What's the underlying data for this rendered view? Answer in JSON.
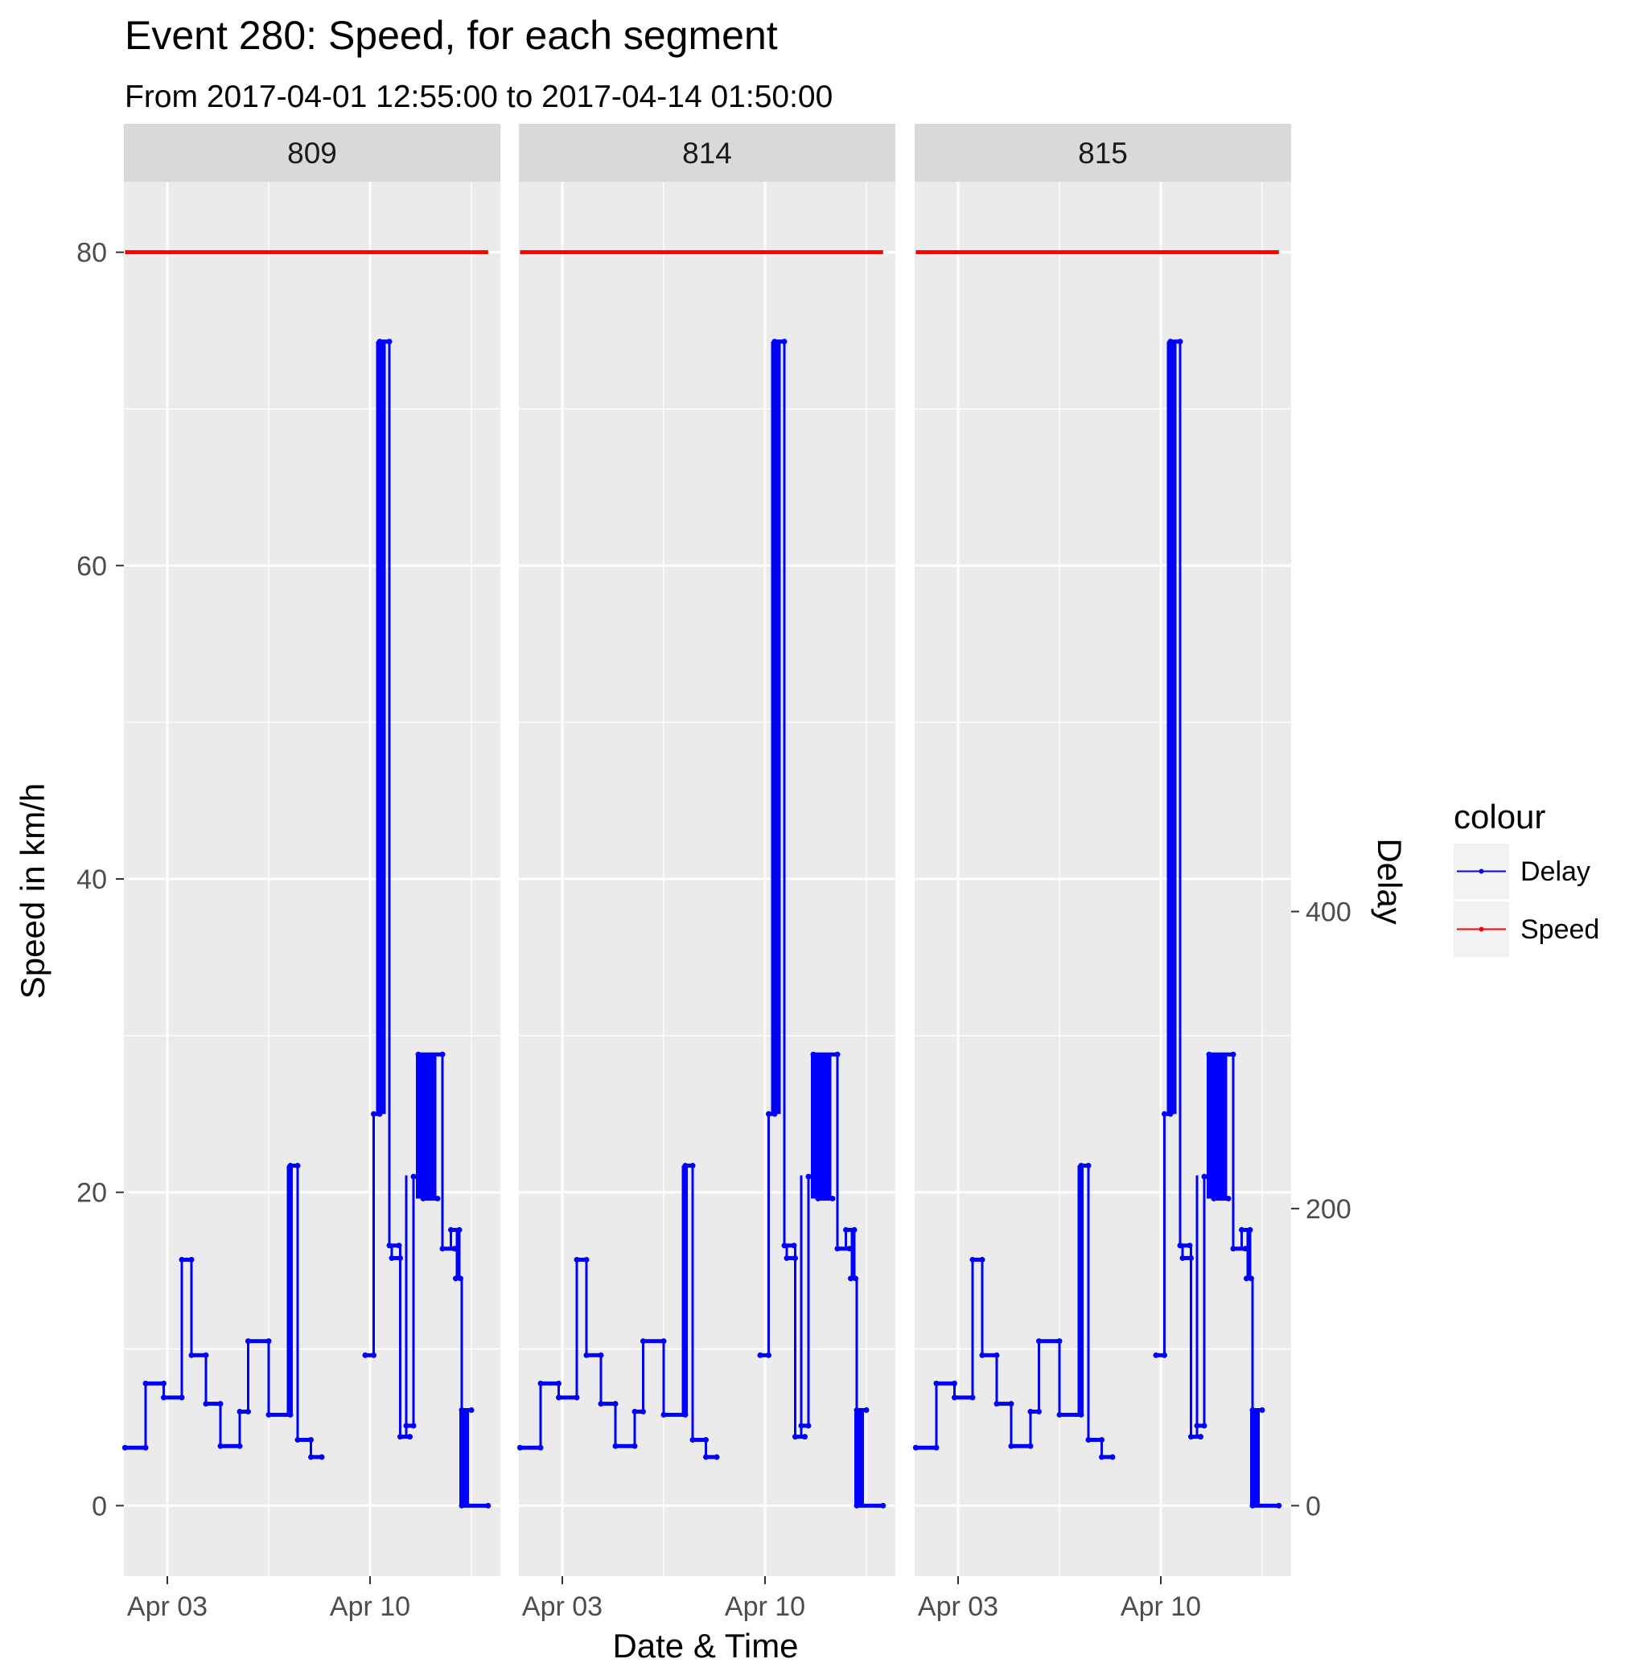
{
  "chart_data": {
    "type": "line",
    "title": "Event 280: Speed, for each segment",
    "subtitle": "From 2017-04-01 12:55:00 to 2017-04-14 01:50:00",
    "xlabel": "Date & Time",
    "ylabel": "Speed in km/h",
    "y2label": "Delay",
    "panels": [
      "809",
      "814",
      "815"
    ],
    "x_ticks": [
      "Apr 03",
      "Apr 10"
    ],
    "xlim": [
      "2017-04-01T12:00",
      "2017-04-14T12:00"
    ],
    "ylim": [
      -4.5,
      84.5
    ],
    "y_ticks": [
      0,
      20,
      40,
      60,
      80
    ],
    "y2_ticks": [
      0,
      200,
      400
    ],
    "y2_scale": 0.0948,
    "grid": true,
    "legend": {
      "title": "colour",
      "position": "right",
      "entries": [
        {
          "name": "Delay",
          "color": "#0000ff"
        },
        {
          "name": "Speed",
          "color": "#ff0000"
        }
      ]
    },
    "series": [
      {
        "name": "Speed",
        "color": "#ff0000",
        "points": [
          [
            "2017-04-01T12:55",
            80
          ],
          [
            "2017-04-14T01:50",
            80
          ]
        ]
      },
      {
        "name": "Delay",
        "color": "#0000ff",
        "segments": [
          [
            [
              "2017-04-01T12:55",
              3.7
            ],
            [
              "2017-04-02T06:00",
              3.7
            ]
          ],
          [
            [
              "2017-04-02T06:00",
              7.8
            ],
            [
              "2017-04-02T21:00",
              7.8
            ]
          ],
          [
            [
              "2017-04-02T21:00",
              6.9
            ],
            [
              "2017-04-03T12:00",
              6.9
            ]
          ],
          [
            [
              "2017-04-03T12:00",
              15.7
            ],
            [
              "2017-04-03T20:00",
              15.7
            ]
          ],
          [
            [
              "2017-04-03T20:00",
              9.6
            ],
            [
              "2017-04-04T08:00",
              9.6
            ]
          ],
          [
            [
              "2017-04-04T08:00",
              6.5
            ],
            [
              "2017-04-04T20:00",
              6.5
            ]
          ],
          [
            [
              "2017-04-04T20:00",
              3.8
            ],
            [
              "2017-04-05T12:00",
              3.8
            ]
          ],
          [
            [
              "2017-04-05T12:00",
              6.0
            ],
            [
              "2017-04-05T19:00",
              6.0
            ]
          ],
          [
            [
              "2017-04-05T19:00",
              10.5
            ],
            [
              "2017-04-06T12:00",
              10.5
            ]
          ],
          [
            [
              "2017-04-06T12:00",
              5.8
            ],
            [
              "2017-04-07T06:00",
              5.8
            ]
          ],
          [
            [
              "2017-04-07T06:00",
              21.7
            ],
            [
              "2017-04-07T12:00",
              21.7
            ]
          ],
          [
            [
              "2017-04-07T12:00",
              4.2
            ],
            [
              "2017-04-07T23:00",
              4.2
            ]
          ],
          [
            [
              "2017-04-07T23:00",
              3.1
            ],
            [
              "2017-04-08T08:00",
              3.1
            ]
          ],
          [
            [
              "2017-04-09T20:00",
              9.6
            ],
            [
              "2017-04-10T03:00",
              9.6
            ]
          ],
          [
            [
              "2017-04-10T03:00",
              25.0
            ],
            [
              "2017-04-10T08:00",
              25.0
            ]
          ],
          [
            [
              "2017-04-10T08:00",
              74.3
            ],
            [
              "2017-04-10T16:00",
              74.3
            ]
          ],
          [
            [
              "2017-04-10T16:00",
              16.6
            ],
            [
              "2017-04-11T00:00",
              16.6
            ]
          ],
          [
            [
              "2017-04-10T18:00",
              15.8
            ],
            [
              "2017-04-11T01:00",
              15.8
            ]
          ],
          [
            [
              "2017-04-11T01:00",
              4.4
            ],
            [
              "2017-04-11T09:00",
              4.4
            ]
          ],
          [
            [
              "2017-04-11T06:00",
              5.1
            ],
            [
              "2017-04-11T12:00",
              5.1
            ]
          ],
          [
            [
              "2017-04-11T12:00",
              21.0
            ],
            [
              "2017-04-11T20:00",
              21.0
            ]
          ],
          [
            [
              "2017-04-11T16:00",
              28.8
            ],
            [
              "2017-04-12T12:00",
              28.8
            ]
          ],
          [
            [
              "2017-04-11T20:00",
              19.6
            ],
            [
              "2017-04-12T08:00",
              19.6
            ]
          ],
          [
            [
              "2017-04-12T12:00",
              16.4
            ],
            [
              "2017-04-12T22:00",
              16.4
            ]
          ],
          [
            [
              "2017-04-12T19:00",
              17.6
            ],
            [
              "2017-04-13T02:00",
              17.6
            ]
          ],
          [
            [
              "2017-04-12T23:00",
              14.5
            ],
            [
              "2017-04-13T03:00",
              14.5
            ]
          ],
          [
            [
              "2017-04-13T04:00",
              6.1
            ],
            [
              "2017-04-13T12:00",
              6.1
            ]
          ],
          [
            [
              "2017-04-13T04:00",
              0.0
            ],
            [
              "2017-04-14T01:50",
              0.0
            ]
          ]
        ],
        "bands": [
          {
            "x": [
              "2017-04-02T05:00",
              "2017-04-02T07:00"
            ],
            "y": [
              3.7,
              7.8
            ]
          },
          {
            "x": [
              "2017-04-07T03:00",
              "2017-04-07T08:00"
            ],
            "y": [
              5.8,
              21.7
            ]
          },
          {
            "x": [
              "2017-04-10T05:00",
              "2017-04-10T13:00"
            ],
            "y": [
              25.0,
              74.3
            ]
          },
          {
            "x": [
              "2017-04-11T14:00",
              "2017-04-12T07:00"
            ],
            "y": [
              19.6,
              28.8
            ]
          },
          {
            "x": [
              "2017-04-12T23:00",
              "2017-04-13T03:00"
            ],
            "y": [
              14.5,
              17.6
            ]
          },
          {
            "x": [
              "2017-04-13T02:00",
              "2017-04-13T10:00"
            ],
            "y": [
              0.0,
              6.1
            ]
          }
        ],
        "verticals": [
          [
            [
              "2017-04-02T21:00",
              6.9
            ],
            [
              "2017-04-02T21:00",
              7.8
            ]
          ],
          [
            [
              "2017-04-03T12:00",
              6.9
            ],
            [
              "2017-04-03T12:00",
              15.7
            ]
          ],
          [
            [
              "2017-04-03T20:00",
              9.6
            ],
            [
              "2017-04-03T20:00",
              15.7
            ]
          ],
          [
            [
              "2017-04-04T08:00",
              6.5
            ],
            [
              "2017-04-04T08:00",
              9.6
            ]
          ],
          [
            [
              "2017-04-04T20:00",
              3.8
            ],
            [
              "2017-04-04T20:00",
              6.5
            ]
          ],
          [
            [
              "2017-04-05T12:00",
              3.8
            ],
            [
              "2017-04-05T12:00",
              6.0
            ]
          ],
          [
            [
              "2017-04-05T19:00",
              6.0
            ],
            [
              "2017-04-05T19:00",
              10.5
            ]
          ],
          [
            [
              "2017-04-06T12:00",
              5.8
            ],
            [
              "2017-04-06T12:00",
              10.5
            ]
          ],
          [
            [
              "2017-04-07T12:00",
              4.2
            ],
            [
              "2017-04-07T12:00",
              21.7
            ]
          ],
          [
            [
              "2017-04-07T23:00",
              3.1
            ],
            [
              "2017-04-07T23:00",
              4.2
            ]
          ],
          [
            [
              "2017-04-10T03:00",
              9.6
            ],
            [
              "2017-04-10T03:00",
              25.0
            ]
          ],
          [
            [
              "2017-04-10T16:00",
              16.6
            ],
            [
              "2017-04-10T16:00",
              74.3
            ]
          ],
          [
            [
              "2017-04-10T18:00",
              15.8
            ],
            [
              "2017-04-10T18:00",
              16.6
            ]
          ],
          [
            [
              "2017-04-11T01:00",
              4.4
            ],
            [
              "2017-04-11T01:00",
              16.6
            ]
          ],
          [
            [
              "2017-04-11T06:00",
              4.4
            ],
            [
              "2017-04-11T06:00",
              21.0
            ]
          ],
          [
            [
              "2017-04-11T12:00",
              5.1
            ],
            [
              "2017-04-11T12:00",
              21.0
            ]
          ],
          [
            [
              "2017-04-11T16:00",
              21.0
            ],
            [
              "2017-04-11T16:00",
              28.8
            ]
          ],
          [
            [
              "2017-04-12T12:00",
              16.4
            ],
            [
              "2017-04-12T12:00",
              28.8
            ]
          ],
          [
            [
              "2017-04-12T19:00",
              16.4
            ],
            [
              "2017-04-12T19:00",
              17.6
            ]
          ],
          [
            [
              "2017-04-13T02:00",
              14.5
            ],
            [
              "2017-04-13T02:00",
              17.6
            ]
          ],
          [
            [
              "2017-04-13T04:00",
              0.0
            ],
            [
              "2017-04-13T04:00",
              14.5
            ]
          ]
        ]
      }
    ]
  }
}
